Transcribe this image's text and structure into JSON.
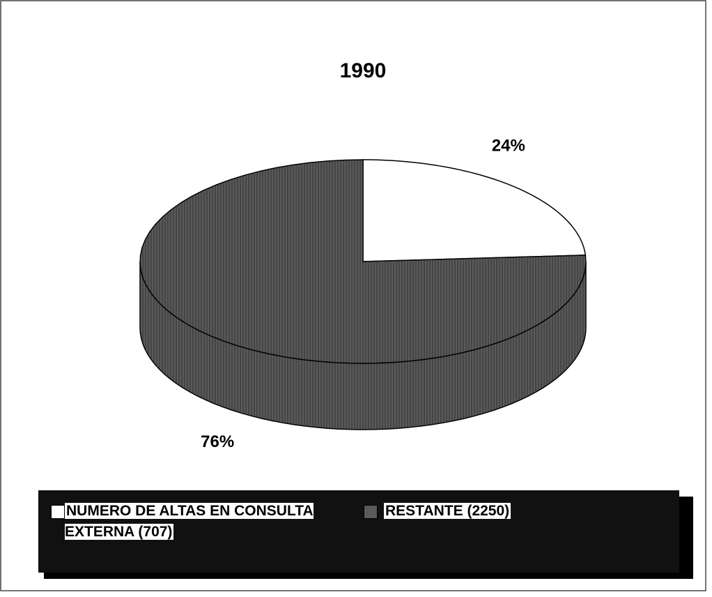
{
  "chart_data": {
    "type": "pie",
    "title": "1990",
    "categories": [
      "NUMERO DE ALTAS EN CONSULTA EXTERNA (707)",
      "RESTANTE (2250)"
    ],
    "values": [
      24,
      76
    ],
    "value_labels": [
      "24%",
      "76%"
    ],
    "colors": [
      "#ffffff",
      "#5a5a5a"
    ]
  }
}
